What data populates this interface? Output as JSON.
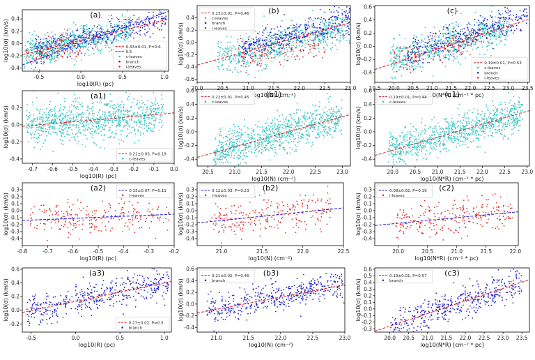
{
  "colors": {
    "c_leaves": "#35c4c4",
    "i_leaves": "#e03030",
    "branch": "#2626c8",
    "fit_red": "#e03030",
    "fit_blue": "#2a2ad8"
  },
  "chart_data": [
    {
      "id": "a",
      "type": "scatter",
      "title": "(a)",
      "xlabel": "log10(R) (pc)",
      "ylabel": "log10(σ) (km/s)",
      "xlim": [
        -0.7,
        1.05
      ],
      "ylim": [
        -0.45,
        0.55
      ],
      "xticks": [
        -0.5,
        0.0,
        0.5,
        1.0
      ],
      "yticks": [
        -0.4,
        -0.2,
        0.0,
        0.2,
        0.4
      ],
      "xtick_labels": [
        "-0.5",
        "0.0",
        "0.5",
        "1.0"
      ],
      "ytick_labels": [
        "-0.4",
        "-0.2",
        "0.0",
        "0.2",
        "0.4"
      ],
      "legend": {
        "position": "lower-right",
        "entries": [
          {
            "label": "0.33±0.01, P=0.6",
            "kind": "line",
            "color": "#e03030"
          },
          {
            "label": "0.5",
            "kind": "line",
            "color": "#2a2ad8"
          },
          {
            "label": "c-leaves",
            "kind": "dot",
            "color": "#35c4c4"
          },
          {
            "label": "branch",
            "kind": "dot",
            "color": "#2626c8"
          },
          {
            "label": "i-leaves",
            "kind": "dot",
            "color": "#e03030"
          }
        ]
      },
      "fits": [
        {
          "slope": 0.33,
          "intercept": 0.05,
          "color": "#e03030"
        },
        {
          "slope": 0.5,
          "intercept": 0.0,
          "color": "#2a2ad8"
        }
      ],
      "series": [
        {
          "name": "c-leaves",
          "color": "#35c4c4",
          "n": 700,
          "xmin": -0.68,
          "xmax": 0.6,
          "slope": 0.3,
          "intercept": 0.04,
          "noise": 0.12
        },
        {
          "name": "branch",
          "color": "#2626c8",
          "n": 380,
          "xmin": -0.55,
          "xmax": 1.02,
          "slope": 0.33,
          "intercept": 0.07,
          "noise": 0.1
        },
        {
          "name": "i-leaves",
          "color": "#e03030",
          "n": 110,
          "xmin": -0.65,
          "xmax": 0.0,
          "slope": 0.3,
          "intercept": 0.0,
          "noise": 0.11
        }
      ]
    },
    {
      "id": "b",
      "type": "scatter",
      "title": "(b)",
      "xlabel": "log10(N) (cm⁻²)",
      "ylabel": "log10(σ) (km/s)",
      "xlim": [
        20.0,
        23.0
      ],
      "ylim": [
        -0.65,
        0.6
      ],
      "xticks": [
        20.0,
        20.5,
        21.0,
        21.5,
        22.0,
        22.5,
        23.0
      ],
      "yticks": [
        -0.6,
        -0.4,
        -0.2,
        0.0,
        0.2,
        0.4
      ],
      "xtick_labels": [
        "20.0",
        "20.5",
        "21.0",
        "21.5",
        "22.0",
        "22.5",
        "23.0"
      ],
      "ytick_labels": [
        "-0.6",
        "-0.4",
        "-0.2",
        "0.0",
        "0.2",
        "0.4"
      ],
      "legend": {
        "position": "top-left",
        "entries": [
          {
            "label": "0.23±0.01, P=0.46",
            "kind": "line",
            "color": "#e03030"
          },
          {
            "label": "c-leaves",
            "kind": "dot",
            "color": "#35c4c4"
          },
          {
            "label": "branch",
            "kind": "dot",
            "color": "#2626c8"
          },
          {
            "label": "i-leaves",
            "kind": "dot",
            "color": "#e03030"
          }
        ]
      },
      "fits": [
        {
          "slope": 0.23,
          "intercept": -4.97,
          "color": "#e03030"
        }
      ],
      "series": [
        {
          "name": "c-leaves",
          "color": "#35c4c4",
          "n": 650,
          "xmin": 20.4,
          "xmax": 23.0,
          "slope": 0.2,
          "intercept": -4.35,
          "noise": 0.14
        },
        {
          "name": "branch",
          "color": "#2626c8",
          "n": 380,
          "xmin": 20.8,
          "xmax": 23.0,
          "slope": 0.25,
          "intercept": -5.35,
          "noise": 0.12
        },
        {
          "name": "i-leaves",
          "color": "#e03030",
          "n": 110,
          "xmin": 20.8,
          "xmax": 22.5,
          "slope": 0.15,
          "intercept": -3.4,
          "noise": 0.11
        }
      ]
    },
    {
      "id": "c",
      "type": "scatter",
      "title": "(c)",
      "xlabel": "log10(N*R) (cm⁻² * pc)",
      "ylabel": "log10(σ) (km/s)",
      "xlim": [
        19.5,
        23.55
      ],
      "ylim": [
        -0.55,
        0.62
      ],
      "xticks": [
        19.5,
        20.0,
        20.5,
        21.0,
        21.5,
        22.0,
        22.5,
        23.0,
        23.5
      ],
      "yticks": [
        -0.4,
        -0.2,
        0.0,
        0.2,
        0.4,
        0.6
      ],
      "xtick_labels": [
        "19.5",
        "20.0",
        "20.5",
        "21.0",
        "21.5",
        "22.0",
        "22.5",
        "23.0",
        "23.5"
      ],
      "ytick_labels": [
        "-0.4",
        "-0.2",
        "0.0",
        "0.2",
        "0.4",
        "0.6"
      ],
      "legend": {
        "position": "lower-right",
        "entries": [
          {
            "label": "0.19±0.01, P=0.53",
            "kind": "line",
            "color": "#e03030"
          },
          {
            "label": "c-leaves",
            "kind": "dot",
            "color": "#35c4c4"
          },
          {
            "label": "branch",
            "kind": "dot",
            "color": "#2626c8"
          },
          {
            "label": "i-leaves",
            "kind": "dot",
            "color": "#e03030"
          }
        ]
      },
      "fits": [
        {
          "slope": 0.19,
          "intercept": -4.06,
          "color": "#e03030"
        }
      ],
      "series": [
        {
          "name": "c-leaves",
          "color": "#35c4c4",
          "n": 650,
          "xmin": 19.9,
          "xmax": 23.0,
          "slope": 0.17,
          "intercept": -3.6,
          "noise": 0.13
        },
        {
          "name": "branch",
          "color": "#2626c8",
          "n": 380,
          "xmin": 20.3,
          "xmax": 23.5,
          "slope": 0.19,
          "intercept": -4.0,
          "noise": 0.11
        },
        {
          "name": "i-leaves",
          "color": "#e03030",
          "n": 110,
          "xmin": 20.0,
          "xmax": 22.2,
          "slope": 0.12,
          "intercept": -2.6,
          "noise": 0.11
        }
      ]
    },
    {
      "id": "a1",
      "type": "scatter",
      "title": "(a1)",
      "xlabel": "log10(R) (pc)",
      "ylabel": "log10(σ) (km/s)",
      "xlim": [
        -0.75,
        0.0
      ],
      "ylim": [
        -0.45,
        0.4
      ],
      "xticks": [
        -0.7,
        -0.6,
        -0.5,
        -0.4,
        -0.3,
        -0.2,
        -0.1,
        0.0
      ],
      "yticks": [
        -0.4,
        -0.2,
        0.0,
        0.2
      ],
      "xtick_labels": [
        "-0.7",
        "-0.6",
        "-0.5",
        "-0.4",
        "-0.3",
        "-0.2",
        "-0.1",
        "0.0"
      ],
      "ytick_labels": [
        "-0.4",
        "-0.2",
        "0.0",
        "0.2"
      ],
      "legend": {
        "position": "lower-right",
        "entries": [
          {
            "label": "0.21±0.03, P=0.19",
            "kind": "line",
            "color": "#e03030"
          },
          {
            "label": "c-leaves",
            "kind": "dot",
            "color": "#35c4c4"
          }
        ]
      },
      "fits": [
        {
          "slope": 0.21,
          "intercept": 0.14,
          "color": "#e03030"
        }
      ],
      "series": [
        {
          "name": "c-leaves",
          "color": "#35c4c4",
          "n": 900,
          "xmin": -0.73,
          "xmax": -0.05,
          "slope": 0.21,
          "intercept": 0.14,
          "noise": 0.12
        }
      ]
    },
    {
      "id": "b1",
      "type": "scatter",
      "title": "(b1)",
      "xlabel": "log10(N) (cm⁻²)",
      "ylabel": "log10(σ) (km/s)",
      "xlim": [
        20.3,
        23.15
      ],
      "ylim": [
        -0.5,
        0.62
      ],
      "xticks": [
        20.5,
        21.0,
        21.5,
        22.0,
        22.5,
        23.0
      ],
      "yticks": [
        -0.4,
        -0.2,
        0.0,
        0.2,
        0.4,
        0.6
      ],
      "xtick_labels": [
        "20.5",
        "21.0",
        "21.5",
        "22.0",
        "22.5",
        "23.0"
      ],
      "ytick_labels": [
        "-0.4",
        "-0.2",
        "0.0",
        "0.2",
        "0.4",
        "0.6"
      ],
      "legend": {
        "position": "top-left",
        "entries": [
          {
            "label": "0.22±0.01, P=0.45",
            "kind": "line",
            "color": "#e03030"
          },
          {
            "label": "c-leaves",
            "kind": "dot",
            "color": "#35c4c4"
          }
        ]
      },
      "fits": [
        {
          "slope": 0.22,
          "intercept": -4.84,
          "color": "#e03030"
        }
      ],
      "series": [
        {
          "name": "c-leaves",
          "color": "#35c4c4",
          "n": 900,
          "xmin": 20.6,
          "xmax": 23.0,
          "slope": 0.22,
          "intercept": -4.84,
          "noise": 0.13
        }
      ]
    },
    {
      "id": "c1",
      "type": "scatter",
      "title": "(c1)",
      "xlabel": "log10(N*R) (cm⁻² * pc)",
      "ylabel": "log10(σ) (km/s)",
      "xlim": [
        19.6,
        23.05
      ],
      "ylim": [
        -0.5,
        0.62
      ],
      "xticks": [
        20.0,
        20.5,
        21.0,
        21.5,
        22.0,
        22.5,
        23.0
      ],
      "yticks": [
        -0.4,
        -0.2,
        0.0,
        0.2,
        0.4,
        0.6
      ],
      "xtick_labels": [
        "20.0",
        "20.5",
        "21.0",
        "21.5",
        "22.0",
        "22.5",
        "23.0"
      ],
      "ytick_labels": [
        "-0.4",
        "-0.2",
        "0.0",
        "0.2",
        "0.4",
        "0.6"
      ],
      "legend": {
        "position": "top-left",
        "entries": [
          {
            "label": "0.19±0.01, P=0.44",
            "kind": "line",
            "color": "#e03030"
          },
          {
            "label": "c-leaves",
            "kind": "dot",
            "color": "#35c4c4"
          }
        ]
      },
      "fits": [
        {
          "slope": 0.19,
          "intercept": -4.07,
          "color": "#e03030"
        }
      ],
      "series": [
        {
          "name": "c-leaves",
          "color": "#35c4c4",
          "n": 900,
          "xmin": 19.9,
          "xmax": 22.9,
          "slope": 0.19,
          "intercept": -4.07,
          "noise": 0.12
        }
      ]
    },
    {
      "id": "a2",
      "type": "scatter",
      "title": "(a2)",
      "xlabel": "log10(R) (pc)",
      "ylabel": "log10(σ) (km/s)",
      "xlim": [
        -0.8,
        -0.2
      ],
      "ylim": [
        -0.5,
        0.4
      ],
      "xticks": [
        -0.8,
        -0.7,
        -0.6,
        -0.5,
        -0.4,
        -0.3,
        -0.2
      ],
      "yticks": [
        -0.4,
        -0.3,
        -0.2,
        -0.1,
        0.0,
        0.1,
        0.2,
        0.3
      ],
      "xtick_labels": [
        "-0.8",
        "-0.7",
        "-0.6",
        "-0.5",
        "-0.4",
        "-0.3",
        "-0.2"
      ],
      "ytick_labels": [
        "-0.4",
        "-0.3",
        "-0.2",
        "-0.1",
        "0.0",
        "0.1",
        "0.2",
        "0.3"
      ],
      "legend": {
        "position": "top-right",
        "entries": [
          {
            "label": "0.15±0.07, P=0.11",
            "kind": "line",
            "color": "#2a2ad8"
          },
          {
            "label": "i-leaves",
            "kind": "dot",
            "color": "#e03030"
          }
        ]
      },
      "fits": [
        {
          "slope": 0.15,
          "intercept": -0.02,
          "color": "#2a2ad8"
        }
      ],
      "series": [
        {
          "name": "i-leaves",
          "color": "#e03030",
          "n": 250,
          "xmin": -0.77,
          "xmax": -0.22,
          "slope": 0.15,
          "intercept": -0.02,
          "noise": 0.12
        }
      ]
    },
    {
      "id": "b2",
      "type": "scatter",
      "title": "(b2)",
      "xlabel": "log10(N) (cm⁻²)",
      "ylabel": "log10(σ) (km/s)",
      "xlim": [
        20.7,
        22.5
      ],
      "ylim": [
        -0.5,
        0.4
      ],
      "xticks": [
        21.0,
        21.5,
        22.0,
        22.5
      ],
      "yticks": [
        -0.4,
        -0.3,
        -0.2,
        -0.1,
        0.0,
        0.1,
        0.2,
        0.3
      ],
      "xtick_labels": [
        "21.0",
        "21.5",
        "22.0",
        "22.5"
      ],
      "ytick_labels": [
        "-0.4",
        "-0.3",
        "-0.2",
        "-0.1",
        "0.0",
        "0.1",
        "0.2",
        "0.3"
      ],
      "legend": {
        "position": "top-left",
        "entries": [
          {
            "label": "0.12±0.03, P=0.23",
            "kind": "line",
            "color": "#2a2ad8"
          },
          {
            "label": "i-leaves",
            "kind": "dot",
            "color": "#e03030"
          }
        ]
      },
      "fits": [
        {
          "slope": 0.12,
          "intercept": -2.66,
          "color": "#2a2ad8"
        }
      ],
      "series": [
        {
          "name": "i-leaves",
          "color": "#e03030",
          "n": 250,
          "xmin": 20.85,
          "xmax": 22.35,
          "slope": 0.12,
          "intercept": -2.66,
          "noise": 0.12
        }
      ]
    },
    {
      "id": "c2",
      "type": "scatter",
      "title": "(c2)",
      "xlabel": "log10(N*R) (cm⁻² * pc)",
      "ylabel": "log10(σ) (km/s)",
      "xlim": [
        19.6,
        22.05
      ],
      "ylim": [
        -0.5,
        0.4
      ],
      "xticks": [
        20.0,
        20.5,
        21.0,
        21.5,
        22.0
      ],
      "yticks": [
        -0.4,
        -0.3,
        -0.2,
        -0.1,
        0.0,
        0.1,
        0.2,
        0.3
      ],
      "xtick_labels": [
        "20.0",
        "20.5",
        "21.0",
        "21.5",
        "22.0"
      ],
      "ytick_labels": [
        "-0.4",
        "-0.3",
        "-0.2",
        "-0.1",
        "0.0",
        "0.1",
        "0.2",
        "0.3"
      ],
      "legend": {
        "position": "top-left",
        "entries": [
          {
            "label": "0.08±0.02, P=0.19",
            "kind": "line",
            "color": "#2a2ad8"
          },
          {
            "label": "i-leaves",
            "kind": "dot",
            "color": "#e03030"
          }
        ]
      },
      "fits": [
        {
          "slope": 0.08,
          "intercept": -1.78,
          "color": "#2a2ad8"
        }
      ],
      "series": [
        {
          "name": "i-leaves",
          "color": "#e03030",
          "n": 250,
          "xmin": 19.95,
          "xmax": 21.95,
          "slope": 0.08,
          "intercept": -1.78,
          "noise": 0.12
        }
      ]
    },
    {
      "id": "a3",
      "type": "scatter",
      "title": "(a3)",
      "xlabel": "log10(R) (pc)",
      "ylabel": "log10(σ) (km/s)",
      "xlim": [
        -0.6,
        1.08
      ],
      "ylim": [
        -0.32,
        0.62
      ],
      "xticks": [
        -0.5,
        0.0,
        0.5,
        1.0
      ],
      "yticks": [
        -0.2,
        0.0,
        0.2,
        0.4,
        0.6
      ],
      "xtick_labels": [
        "-0.5",
        "0.0",
        "0.5",
        "1.0"
      ],
      "ytick_labels": [
        "-0.2",
        "0.0",
        "0.2",
        "0.4",
        "0.6"
      ],
      "legend": {
        "position": "lower-right",
        "entries": [
          {
            "label": "0.27±0.02, P=0.5",
            "kind": "line",
            "color": "#e03030"
          },
          {
            "label": "branch",
            "kind": "dot",
            "color": "#2626c8"
          }
        ]
      },
      "fits": [
        {
          "slope": 0.27,
          "intercept": 0.13,
          "color": "#e03030"
        }
      ],
      "series": [
        {
          "name": "branch",
          "color": "#2626c8",
          "n": 450,
          "xmin": -0.55,
          "xmax": 1.05,
          "slope": 0.27,
          "intercept": 0.13,
          "noise": 0.11
        }
      ]
    },
    {
      "id": "b3",
      "type": "scatter",
      "title": "(b3)",
      "xlabel": "log10(N) (cm⁻²)",
      "ylabel": "log10(σ) (km/s)",
      "xlim": [
        20.7,
        23.0
      ],
      "ylim": [
        -0.48,
        0.62
      ],
      "xticks": [
        21.0,
        21.5,
        22.0,
        22.5,
        23.0
      ],
      "yticks": [
        -0.4,
        -0.2,
        0.0,
        0.2,
        0.4,
        0.6
      ],
      "xtick_labels": [
        "21.0",
        "21.5",
        "22.0",
        "22.5",
        "23.0"
      ],
      "ytick_labels": [
        "-0.4",
        "-0.2",
        "0.0",
        "0.2",
        "0.4",
        "0.6"
      ],
      "legend": {
        "position": "top-left",
        "entries": [
          {
            "label": "0.21±0.02, P=0.46",
            "kind": "line",
            "color": "#e03030"
          },
          {
            "label": "branch",
            "kind": "dot",
            "color": "#2626c8"
          }
        ]
      },
      "fits": [
        {
          "slope": 0.21,
          "intercept": -4.5,
          "color": "#e03030"
        }
      ],
      "series": [
        {
          "name": "branch",
          "color": "#2626c8",
          "n": 450,
          "xmin": 20.85,
          "xmax": 23.0,
          "slope": 0.21,
          "intercept": -4.5,
          "noise": 0.12
        }
      ]
    },
    {
      "id": "c3",
      "type": "scatter",
      "title": "(c3)",
      "xlabel": "log10(N*R) [cm⁻² * pc]",
      "ylabel": "log10(σ) (km/s)",
      "xlim": [
        19.6,
        23.7
      ],
      "ylim": [
        -0.35,
        0.62
      ],
      "xticks": [
        20.0,
        20.5,
        21.0,
        21.5,
        22.0,
        22.5,
        23.0,
        23.5
      ],
      "yticks": [
        -0.3,
        -0.2,
        -0.1,
        0.0,
        0.1,
        0.2,
        0.3,
        0.4,
        0.5,
        0.6
      ],
      "xtick_labels": [
        "20.0",
        "20.5",
        "21.0",
        "21.5",
        "22.0",
        "22.5",
        "23.0",
        "23.5"
      ],
      "ytick_labels": [
        "-0.3",
        "-0.2",
        "-0.1",
        "0.0",
        "0.1",
        "0.2",
        "0.3",
        "0.4",
        "0.5",
        "0.6"
      ],
      "legend": {
        "position": "top-left",
        "entries": [
          {
            "label": "0.19±0.01, P=0.57",
            "kind": "line",
            "color": "#e03030"
          },
          {
            "label": "branch",
            "kind": "dot",
            "color": "#2626c8"
          }
        ]
      },
      "fits": [
        {
          "slope": 0.19,
          "intercept": -4.06,
          "color": "#e03030"
        }
      ],
      "series": [
        {
          "name": "branch",
          "color": "#2626c8",
          "n": 450,
          "xmin": 20.0,
          "xmax": 23.5,
          "slope": 0.19,
          "intercept": -4.06,
          "noise": 0.12
        }
      ]
    }
  ]
}
